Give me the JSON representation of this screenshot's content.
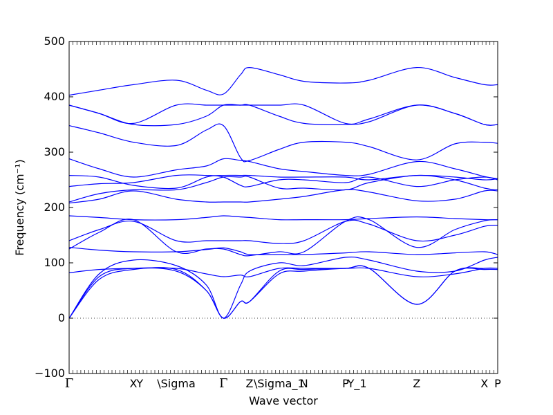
{
  "chart_data": {
    "type": "line",
    "xlabel": "Wave vector",
    "ylabel": "Frequency (cm⁻¹)",
    "ylim": [
      -100,
      500
    ],
    "yticks": [
      -100,
      0,
      100,
      200,
      300,
      400,
      500
    ],
    "kpoint_labels": [
      {
        "label": "Γ",
        "x": 0.0
      },
      {
        "label": "X",
        "x": 0.15
      },
      {
        "label": "Y",
        "x": 0.165
      },
      {
        "label": "\\Sigma",
        "x": 0.25
      },
      {
        "label": "Γ",
        "x": 0.36
      },
      {
        "label": "Z",
        "x": 0.421
      },
      {
        "label": "\\Sigma_1",
        "x": 0.49
      },
      {
        "label": "N",
        "x": 0.548
      },
      {
        "label": "P",
        "x": 0.645
      },
      {
        "label": "Y_1",
        "x": 0.672
      },
      {
        "label": "Z",
        "x": 0.811
      },
      {
        "label": "X",
        "x": 0.969
      },
      {
        "label": "P",
        "x": 1.0
      }
    ],
    "zero_line": true,
    "series": [
      {
        "x": [
          0,
          0.07,
          0.15,
          0.25,
          0.32,
          0.36,
          0.4,
          0.421,
          0.49,
          0.548,
          0.645,
          0.7,
          0.811,
          0.9,
          0.969,
          1.0
        ],
        "values": [
          0,
          70,
          88,
          88,
          50,
          0,
          30,
          30,
          80,
          85,
          90,
          90,
          25,
          85,
          90,
          90
        ]
      },
      {
        "x": [
          0,
          0.07,
          0.15,
          0.25,
          0.32,
          0.36,
          0.4,
          0.421,
          0.49,
          0.548,
          0.645,
          0.7,
          0.811,
          0.9,
          0.969,
          1.0
        ],
        "values": [
          0,
          75,
          90,
          85,
          50,
          0,
          30,
          30,
          85,
          88,
          90,
          90,
          25,
          85,
          88,
          88
        ]
      },
      {
        "x": [
          0,
          0.07,
          0.15,
          0.25,
          0.32,
          0.36,
          0.4,
          0.421,
          0.49,
          0.548,
          0.645,
          0.7,
          0.811,
          0.9,
          0.969,
          1.0
        ],
        "values": [
          0,
          80,
          105,
          95,
          60,
          0,
          60,
          85,
          100,
          95,
          110,
          105,
          85,
          85,
          105,
          110
        ]
      },
      {
        "x": [
          0,
          0.07,
          0.15,
          0.25,
          0.32,
          0.36,
          0.4,
          0.421,
          0.49,
          0.548,
          0.645,
          0.7,
          0.811,
          0.9,
          0.969,
          1.0
        ],
        "values": [
          82,
          88,
          90,
          90,
          80,
          75,
          78,
          75,
          90,
          90,
          90,
          90,
          75,
          80,
          90,
          90
        ]
      },
      {
        "x": [
          0,
          0.07,
          0.15,
          0.25,
          0.32,
          0.36,
          0.4,
          0.421,
          0.49,
          0.548,
          0.645,
          0.7,
          0.811,
          0.9,
          0.969,
          1.0
        ],
        "values": [
          128,
          123,
          120,
          120,
          124,
          127,
          120,
          115,
          115,
          115,
          118,
          120,
          115,
          118,
          120,
          115
        ]
      },
      {
        "x": [
          0,
          0.07,
          0.15,
          0.25,
          0.32,
          0.36,
          0.4,
          0.421,
          0.49,
          0.548,
          0.645,
          0.7,
          0.811,
          0.9,
          0.969,
          1.0
        ],
        "values": [
          125,
          155,
          178,
          120,
          125,
          125,
          115,
          113,
          120,
          120,
          175,
          178,
          128,
          160,
          176,
          178
        ]
      },
      {
        "x": [
          0,
          0.07,
          0.15,
          0.25,
          0.32,
          0.36,
          0.4,
          0.421,
          0.49,
          0.548,
          0.645,
          0.7,
          0.811,
          0.9,
          0.969,
          1.0
        ],
        "values": [
          140,
          160,
          175,
          140,
          140,
          140,
          140,
          140,
          135,
          140,
          175,
          170,
          140,
          150,
          166,
          168
        ]
      },
      {
        "x": [
          0,
          0.07,
          0.15,
          0.25,
          0.32,
          0.36,
          0.4,
          0.421,
          0.49,
          0.548,
          0.645,
          0.7,
          0.811,
          0.9,
          0.969,
          1.0
        ],
        "values": [
          185,
          182,
          178,
          178,
          182,
          185,
          183,
          182,
          178,
          178,
          178,
          180,
          183,
          180,
          178,
          178
        ]
      },
      {
        "x": [
          0,
          0.07,
          0.15,
          0.25,
          0.32,
          0.36,
          0.4,
          0.421,
          0.49,
          0.548,
          0.645,
          0.7,
          0.811,
          0.9,
          0.969,
          1.0
        ],
        "values": [
          208,
          215,
          230,
          215,
          210,
          210,
          210,
          210,
          215,
          220,
          232,
          228,
          212,
          215,
          230,
          230
        ]
      },
      {
        "x": [
          0,
          0.07,
          0.15,
          0.25,
          0.32,
          0.36,
          0.4,
          0.421,
          0.49,
          0.548,
          0.645,
          0.7,
          0.811,
          0.9,
          0.969,
          1.0
        ],
        "values": [
          210,
          225,
          232,
          232,
          245,
          255,
          255,
          255,
          235,
          235,
          232,
          245,
          258,
          250,
          235,
          232
        ]
      },
      {
        "x": [
          0,
          0.07,
          0.15,
          0.25,
          0.32,
          0.36,
          0.4,
          0.421,
          0.49,
          0.548,
          0.645,
          0.7,
          0.811,
          0.9,
          0.969,
          1.0
        ],
        "values": [
          238,
          243,
          245,
          258,
          258,
          255,
          240,
          238,
          250,
          250,
          245,
          255,
          238,
          250,
          255,
          250
        ]
      },
      {
        "x": [
          0,
          0.07,
          0.15,
          0.25,
          0.32,
          0.36,
          0.4,
          0.421,
          0.49,
          0.548,
          0.645,
          0.7,
          0.811,
          0.9,
          0.969,
          1.0
        ],
        "values": [
          258,
          255,
          240,
          235,
          255,
          258,
          258,
          258,
          255,
          255,
          255,
          250,
          258,
          255,
          250,
          252
        ]
      },
      {
        "x": [
          0,
          0.07,
          0.15,
          0.25,
          0.32,
          0.36,
          0.4,
          0.421,
          0.49,
          0.548,
          0.645,
          0.7,
          0.811,
          0.9,
          0.969,
          1.0
        ],
        "values": [
          288,
          270,
          255,
          268,
          275,
          288,
          285,
          283,
          270,
          265,
          258,
          260,
          283,
          270,
          256,
          252
        ]
      },
      {
        "x": [
          0,
          0.07,
          0.15,
          0.25,
          0.32,
          0.36,
          0.4,
          0.421,
          0.49,
          0.548,
          0.645,
          0.7,
          0.811,
          0.9,
          0.969,
          1.0
        ],
        "values": [
          348,
          335,
          318,
          312,
          340,
          348,
          290,
          285,
          305,
          318,
          318,
          310,
          286,
          315,
          318,
          316
        ]
      },
      {
        "x": [
          0,
          0.07,
          0.15,
          0.25,
          0.32,
          0.36,
          0.4,
          0.421,
          0.49,
          0.548,
          0.645,
          0.7,
          0.811,
          0.9,
          0.969,
          1.0
        ],
        "values": [
          385,
          370,
          350,
          350,
          365,
          385,
          385,
          385,
          365,
          352,
          350,
          355,
          385,
          370,
          350,
          350
        ]
      },
      {
        "x": [
          0,
          0.07,
          0.15,
          0.25,
          0.32,
          0.36,
          0.4,
          0.421,
          0.49,
          0.548,
          0.645,
          0.7,
          0.811,
          0.9,
          0.969,
          1.0
        ],
        "values": [
          385,
          370,
          352,
          385,
          385,
          385,
          385,
          385,
          385,
          385,
          352,
          360,
          385,
          370,
          350,
          350
        ]
      },
      {
        "x": [
          0,
          0.07,
          0.15,
          0.25,
          0.32,
          0.36,
          0.4,
          0.421,
          0.49,
          0.548,
          0.645,
          0.7,
          0.811,
          0.9,
          0.969,
          1.0
        ],
        "values": [
          403,
          412,
          422,
          430,
          412,
          405,
          440,
          453,
          440,
          428,
          425,
          430,
          453,
          435,
          422,
          422
        ]
      }
    ],
    "colors": {
      "band": "#0000ff",
      "zero_line": "#000000"
    }
  }
}
